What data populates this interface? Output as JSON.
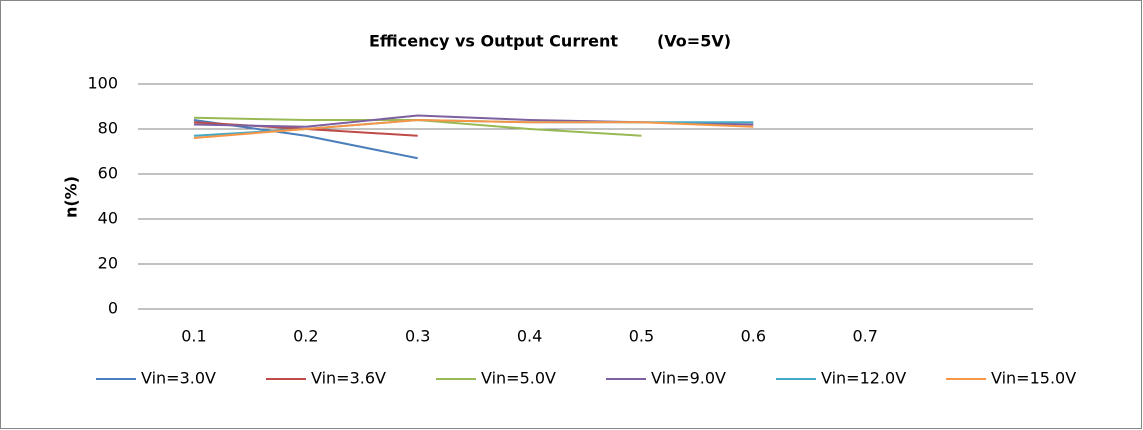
{
  "chart_data": {
    "type": "line",
    "title": "Efficency vs Output Current       (Vo=5V)",
    "y_label": "n(%)",
    "categories": [
      "0.1",
      "0.2",
      "0.3",
      "0.4",
      "0.5",
      "0.6",
      "0.7",
      null
    ],
    "series": [
      {
        "name": "Vin=3.0V",
        "color": "#4a7ebb",
        "values": [
          84,
          77,
          67,
          null,
          null,
          null,
          null,
          null
        ]
      },
      {
        "name": "Vin=3.6V",
        "color": "#be4b48",
        "values": [
          83,
          80,
          77,
          null,
          null,
          null,
          null,
          null
        ]
      },
      {
        "name": "Vin=5.0V",
        "color": "#98b954",
        "values": [
          85,
          84,
          84,
          80,
          77,
          null,
          null,
          null
        ]
      },
      {
        "name": "Vin=9.0V",
        "color": "#7d60a0",
        "values": [
          82,
          81,
          86,
          84,
          83,
          82,
          null,
          null
        ]
      },
      {
        "name": "Vin=12.0V",
        "color": "#46aac5",
        "values": [
          77,
          80,
          84,
          83,
          83,
          83,
          null,
          null
        ]
      },
      {
        "name": "Vin=15.0V",
        "color": "#f79646",
        "values": [
          76,
          80,
          84,
          83,
          83,
          81,
          null,
          null
        ]
      }
    ],
    "ylim": [
      0,
      100
    ],
    "yticks": [
      0,
      20,
      40,
      60,
      80,
      100
    ],
    "grid": true,
    "legend": "bottom"
  }
}
